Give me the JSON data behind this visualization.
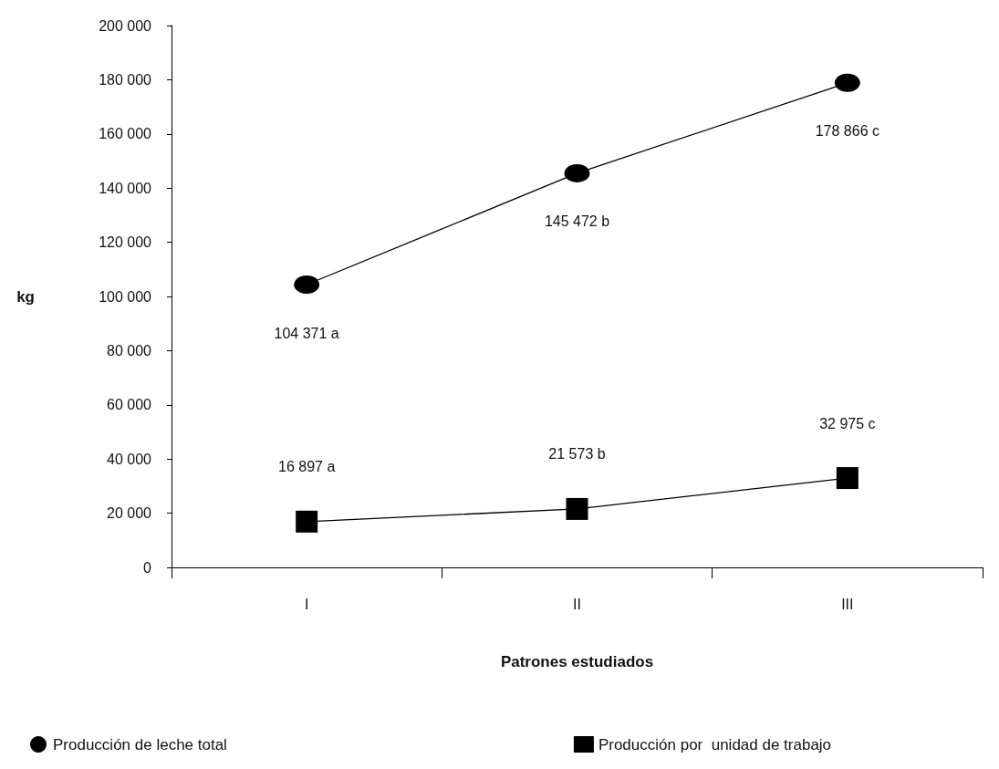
{
  "chart_data": {
    "type": "line",
    "xlabel": "Patrones estudiados",
    "ylabel": "kg",
    "categories": [
      "I",
      "II",
      "III"
    ],
    "series": [
      {
        "name": "Producción de leche total",
        "color": "#000000",
        "marker": "circle",
        "values": [
          104371,
          145472,
          178866
        ],
        "value_labels": [
          "104 371 a",
          "145 472 b",
          "178 866 c"
        ]
      },
      {
        "name": "Producción por  unidad de trabajo",
        "color": "#000000",
        "marker": "square",
        "values": [
          16897,
          21573,
          32975
        ],
        "value_labels": [
          "16 897 a",
          "21 573 b",
          "32 975 c"
        ]
      }
    ],
    "ylim": [
      0,
      200000
    ],
    "yticks": [
      {
        "value": 0,
        "label": "0"
      },
      {
        "value": 20000,
        "label": "20 000"
      },
      {
        "value": 40000,
        "label": "40 000"
      },
      {
        "value": 60000,
        "label": "60 000"
      },
      {
        "value": 80000,
        "label": "80 000"
      },
      {
        "value": 100000,
        "label": "100 000"
      },
      {
        "value": 120000,
        "label": "120 000"
      },
      {
        "value": 140000,
        "label": "140 000"
      },
      {
        "value": 160000,
        "label": "160 000"
      },
      {
        "value": 180000,
        "label": "180 000"
      },
      {
        "value": 200000,
        "label": "200 000"
      }
    ],
    "grid": false,
    "legend": "bottom",
    "line_style": "solid"
  }
}
